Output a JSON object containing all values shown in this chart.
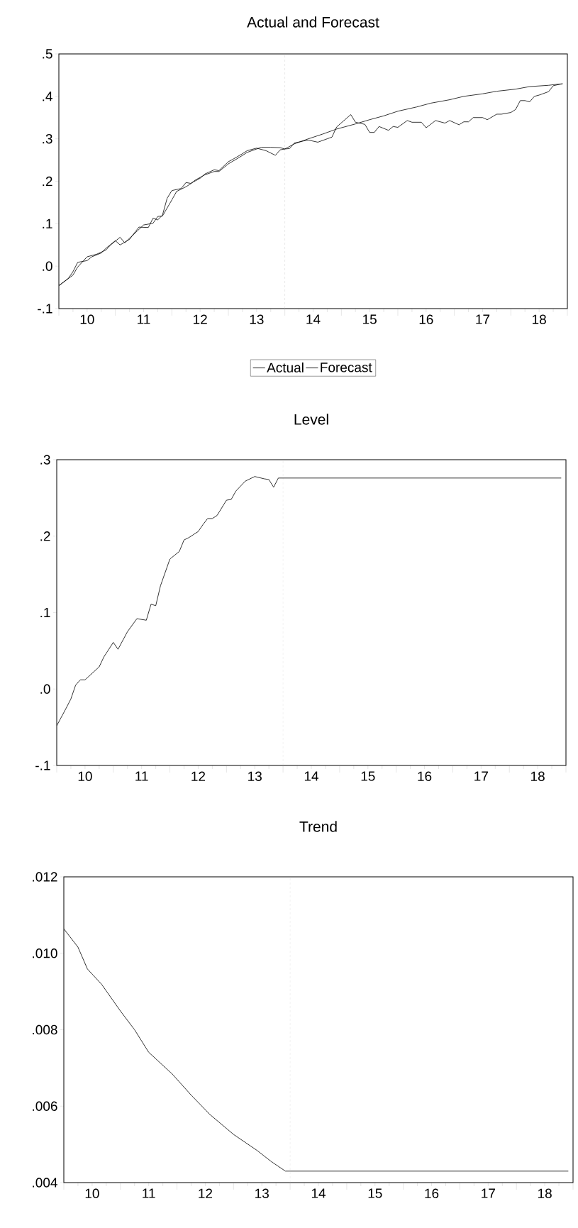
{
  "chart_data": [
    {
      "type": "line",
      "title": "Actual and Forecast",
      "legend": "bottom",
      "series": [
        {
          "name": "Actual",
          "color": "#000000",
          "x": [
            "2010-01",
            "2010-03",
            "2010-04",
            "2010-05",
            "2010-07",
            "2010-08",
            "2010-10",
            "2010-11",
            "2011-01",
            "2011-02",
            "2011-04",
            "2011-06",
            "2011-08",
            "2011-09",
            "2011-10",
            "2011-11",
            "2011-12",
            "2012-01",
            "2012-03",
            "2012-04",
            "2012-05",
            "2012-07",
            "2012-08",
            "2012-10",
            "2012-11",
            "2013-01",
            "2013-02",
            "2013-04",
            "2013-05",
            "2013-07",
            "2013-09",
            "2013-11",
            "2013-12",
            "2014-01",
            "2014-02",
            "2014-03",
            "2014-05",
            "2014-06",
            "2014-08",
            "2014-10",
            "2014-11",
            "2014-12",
            "2015-03",
            "2015-04",
            "2015-06",
            "2015-07",
            "2015-08",
            "2015-09",
            "2015-11",
            "2015-12",
            "2016-01",
            "2016-03",
            "2016-04",
            "2016-06",
            "2016-07",
            "2016-09",
            "2016-11",
            "2016-12",
            "2017-02",
            "2017-03",
            "2017-04",
            "2017-05",
            "2017-07",
            "2017-08",
            "2017-10",
            "2017-11",
            "2018-01",
            "2018-02",
            "2018-03",
            "2018-04",
            "2018-05",
            "2018-06",
            "2018-07",
            "2018-09",
            "2018-10",
            "2018-12"
          ],
          "values": [
            -0.046,
            -0.029,
            -0.013,
            0.009,
            0.013,
            0.022,
            0.031,
            0.042,
            0.06,
            0.05,
            0.063,
            0.092,
            0.091,
            0.113,
            0.109,
            0.12,
            0.16,
            0.178,
            0.183,
            0.197,
            0.195,
            0.207,
            0.217,
            0.227,
            0.225,
            0.246,
            0.252,
            0.265,
            0.272,
            0.278,
            0.272,
            0.261,
            0.274,
            0.276,
            0.277,
            0.29,
            0.295,
            0.297,
            0.292,
            0.3,
            0.304,
            0.328,
            0.357,
            0.339,
            0.334,
            0.315,
            0.315,
            0.329,
            0.32,
            0.329,
            0.327,
            0.343,
            0.339,
            0.339,
            0.326,
            0.343,
            0.337,
            0.343,
            0.333,
            0.34,
            0.34,
            0.35,
            0.35,
            0.345,
            0.358,
            0.358,
            0.362,
            0.369,
            0.39,
            0.39,
            0.387,
            0.4,
            0.403,
            0.411,
            0.425,
            0.43
          ]
        },
        {
          "name": "Forecast",
          "color": "#000000",
          "x": [
            "2010-01",
            "2010-04",
            "2010-05",
            "2010-06",
            "2010-07",
            "2010-09",
            "2010-11",
            "2010-12",
            "2011-02",
            "2011-03",
            "2011-05",
            "2011-07",
            "2011-09",
            "2011-10",
            "2011-11",
            "2012-01",
            "2012-02",
            "2012-04",
            "2012-05",
            "2012-06",
            "2012-08",
            "2012-10",
            "2012-11",
            "2013-01",
            "2013-03",
            "2013-05",
            "2013-08",
            "2013-10",
            "2013-12",
            "2014-01",
            "2014-03",
            "2014-06",
            "2014-09",
            "2014-12",
            "2015-04",
            "2015-07",
            "2015-10",
            "2016-01",
            "2016-05",
            "2016-08",
            "2016-12",
            "2017-03",
            "2017-07",
            "2017-10",
            "2018-02",
            "2018-05",
            "2018-09",
            "2018-12"
          ],
          "values": [
            -0.046,
            -0.021,
            -0.002,
            0.01,
            0.022,
            0.028,
            0.038,
            0.05,
            0.068,
            0.055,
            0.076,
            0.097,
            0.101,
            0.117,
            0.118,
            0.156,
            0.176,
            0.187,
            0.194,
            0.203,
            0.215,
            0.223,
            0.223,
            0.241,
            0.254,
            0.268,
            0.28,
            0.28,
            0.279,
            0.276,
            0.288,
            0.3,
            0.311,
            0.323,
            0.335,
            0.345,
            0.354,
            0.365,
            0.375,
            0.384,
            0.392,
            0.4,
            0.406,
            0.412,
            0.417,
            0.423,
            0.426,
            0.43
          ]
        }
      ],
      "xlim": [
        "2010-01",
        "2019-01"
      ],
      "ylim": [
        -0.1,
        0.5
      ],
      "xticks": [
        {
          "value": "2010-01",
          "label": null
        },
        {
          "value": "2010-04",
          "label": null
        },
        {
          "value": "2010-07",
          "label": "10"
        },
        {
          "value": "2010-10",
          "label": null
        },
        {
          "value": "2011-01",
          "label": null
        },
        {
          "value": "2011-04",
          "label": null
        },
        {
          "value": "2011-07",
          "label": "11"
        },
        {
          "value": "2011-10",
          "label": null
        },
        {
          "value": "2012-01",
          "label": null
        },
        {
          "value": "2012-04",
          "label": null
        },
        {
          "value": "2012-07",
          "label": "12"
        },
        {
          "value": "2012-10",
          "label": null
        },
        {
          "value": "2013-01",
          "label": null
        },
        {
          "value": "2013-04",
          "label": null
        },
        {
          "value": "2013-07",
          "label": "13"
        },
        {
          "value": "2013-10",
          "label": null
        },
        {
          "value": "2014-01",
          "label": null
        },
        {
          "value": "2014-04",
          "label": null
        },
        {
          "value": "2014-07",
          "label": "14"
        },
        {
          "value": "2014-10",
          "label": null
        },
        {
          "value": "2015-01",
          "label": null
        },
        {
          "value": "2015-04",
          "label": null
        },
        {
          "value": "2015-07",
          "label": "15"
        },
        {
          "value": "2015-10",
          "label": null
        },
        {
          "value": "2016-01",
          "label": null
        },
        {
          "value": "2016-04",
          "label": null
        },
        {
          "value": "2016-07",
          "label": "16"
        },
        {
          "value": "2016-10",
          "label": null
        },
        {
          "value": "2017-01",
          "label": null
        },
        {
          "value": "2017-04",
          "label": null
        },
        {
          "value": "2017-07",
          "label": "17"
        },
        {
          "value": "2017-10",
          "label": null
        },
        {
          "value": "2018-01",
          "label": null
        },
        {
          "value": "2018-04",
          "label": null
        },
        {
          "value": "2018-07",
          "label": "18"
        },
        {
          "value": "2018-10",
          "label": null
        },
        {
          "value": "2019-01",
          "label": null
        }
      ],
      "yticks": [
        {
          "value": -0.1,
          "label": "-.1"
        },
        {
          "value": 0,
          "label": ".0"
        },
        {
          "value": 0.1,
          "label": ".1"
        },
        {
          "value": 0.2,
          "label": ".2"
        },
        {
          "value": 0.3,
          "label": ".3"
        },
        {
          "value": 0.4,
          "label": ".4"
        },
        {
          "value": 0.5,
          "label": ".5"
        }
      ],
      "ref_lines": [
        {
          "axis": "x",
          "value": "2014-01",
          "color": "#c0c0c0",
          "line_style": "dashed"
        }
      ]
    },
    {
      "type": "line",
      "title": "Level",
      "color": "#000000",
      "x": [
        "2010-01",
        "2010-03",
        "2010-04",
        "2010-05",
        "2010-06",
        "2010-07",
        "2010-10",
        "2010-11",
        "2011-01",
        "2011-02",
        "2011-04",
        "2011-06",
        "2011-08",
        "2011-09",
        "2011-10",
        "2011-11",
        "2012-01",
        "2012-03",
        "2012-04",
        "2012-05",
        "2012-07",
        "2012-08",
        "2012-09",
        "2012-10",
        "2012-11",
        "2013-01",
        "2013-02",
        "2013-03",
        "2013-05",
        "2013-07",
        "2013-09",
        "2013-10",
        "2013-11",
        "2013-12",
        "2018-12"
      ],
      "values": [
        -0.048,
        -0.025,
        -0.013,
        0.005,
        0.012,
        0.012,
        0.029,
        0.042,
        0.061,
        0.052,
        0.075,
        0.092,
        0.09,
        0.111,
        0.109,
        0.135,
        0.17,
        0.18,
        0.195,
        0.198,
        0.206,
        0.215,
        0.223,
        0.223,
        0.227,
        0.247,
        0.248,
        0.259,
        0.272,
        0.278,
        0.275,
        0.274,
        0.264,
        0.276,
        0.276
      ],
      "xlim": [
        "2010-01",
        "2019-01"
      ],
      "ylim": [
        -0.1,
        0.3
      ],
      "xticks": [
        {
          "value": "2010-01",
          "label": null
        },
        {
          "value": "2010-04",
          "label": null
        },
        {
          "value": "2010-07",
          "label": "10"
        },
        {
          "value": "2010-10",
          "label": null
        },
        {
          "value": "2011-01",
          "label": null
        },
        {
          "value": "2011-04",
          "label": null
        },
        {
          "value": "2011-07",
          "label": "11"
        },
        {
          "value": "2011-10",
          "label": null
        },
        {
          "value": "2012-01",
          "label": null
        },
        {
          "value": "2012-04",
          "label": null
        },
        {
          "value": "2012-07",
          "label": "12"
        },
        {
          "value": "2012-10",
          "label": null
        },
        {
          "value": "2013-01",
          "label": null
        },
        {
          "value": "2013-04",
          "label": null
        },
        {
          "value": "2013-07",
          "label": "13"
        },
        {
          "value": "2013-10",
          "label": null
        },
        {
          "value": "2014-01",
          "label": null
        },
        {
          "value": "2014-04",
          "label": null
        },
        {
          "value": "2014-07",
          "label": "14"
        },
        {
          "value": "2014-10",
          "label": null
        },
        {
          "value": "2015-01",
          "label": null
        },
        {
          "value": "2015-04",
          "label": null
        },
        {
          "value": "2015-07",
          "label": "15"
        },
        {
          "value": "2015-10",
          "label": null
        },
        {
          "value": "2016-01",
          "label": null
        },
        {
          "value": "2016-04",
          "label": null
        },
        {
          "value": "2016-07",
          "label": "16"
        },
        {
          "value": "2016-10",
          "label": null
        },
        {
          "value": "2017-01",
          "label": null
        },
        {
          "value": "2017-04",
          "label": null
        },
        {
          "value": "2017-07",
          "label": "17"
        },
        {
          "value": "2017-10",
          "label": null
        },
        {
          "value": "2018-01",
          "label": null
        },
        {
          "value": "2018-04",
          "label": null
        },
        {
          "value": "2018-07",
          "label": "18"
        },
        {
          "value": "2018-10",
          "label": null
        },
        {
          "value": "2019-01",
          "label": null
        }
      ],
      "yticks": [
        {
          "value": -0.1,
          "label": "-.1"
        },
        {
          "value": 0,
          "label": ".0"
        },
        {
          "value": 0.1,
          "label": ".1"
        },
        {
          "value": 0.2,
          "label": ".2"
        },
        {
          "value": 0.3,
          "label": ".3"
        }
      ],
      "ref_lines": [
        {
          "axis": "x",
          "value": "2014-01",
          "color": "#c0c0c0",
          "line_style": "dashed"
        }
      ]
    },
    {
      "type": "line",
      "title": "Trend",
      "color": "#000000",
      "x": [
        "2010-01",
        "2010-04",
        "2010-06",
        "2010-09",
        "2011-01",
        "2011-04",
        "2011-07",
        "2011-12",
        "2012-04",
        "2012-08",
        "2013-01",
        "2013-06",
        "2013-09",
        "2013-12",
        "2018-12"
      ],
      "values": [
        0.01064,
        0.01016,
        0.00959,
        0.00919,
        0.00849,
        0.008,
        0.00741,
        0.00684,
        0.00629,
        0.00578,
        0.00526,
        0.00484,
        0.00455,
        0.0043,
        0.0043
      ],
      "xlim": [
        "2010-01",
        "2019-01"
      ],
      "ylim": [
        0.004,
        0.012
      ],
      "xticks": [
        {
          "value": "2010-01",
          "label": null
        },
        {
          "value": "2010-04",
          "label": null
        },
        {
          "value": "2010-07",
          "label": "10"
        },
        {
          "value": "2010-10",
          "label": null
        },
        {
          "value": "2011-01",
          "label": null
        },
        {
          "value": "2011-04",
          "label": null
        },
        {
          "value": "2011-07",
          "label": "11"
        },
        {
          "value": "2011-10",
          "label": null
        },
        {
          "value": "2012-01",
          "label": null
        },
        {
          "value": "2012-04",
          "label": null
        },
        {
          "value": "2012-07",
          "label": "12"
        },
        {
          "value": "2012-10",
          "label": null
        },
        {
          "value": "2013-01",
          "label": null
        },
        {
          "value": "2013-04",
          "label": null
        },
        {
          "value": "2013-07",
          "label": "13"
        },
        {
          "value": "2013-10",
          "label": null
        },
        {
          "value": "2014-01",
          "label": null
        },
        {
          "value": "2014-04",
          "label": null
        },
        {
          "value": "2014-07",
          "label": "14"
        },
        {
          "value": "2014-10",
          "label": null
        },
        {
          "value": "2015-01",
          "label": null
        },
        {
          "value": "2015-04",
          "label": null
        },
        {
          "value": "2015-07",
          "label": "15"
        },
        {
          "value": "2015-10",
          "label": null
        },
        {
          "value": "2016-01",
          "label": null
        },
        {
          "value": "2016-04",
          "label": null
        },
        {
          "value": "2016-07",
          "label": "16"
        },
        {
          "value": "2016-10",
          "label": null
        },
        {
          "value": "2017-01",
          "label": null
        },
        {
          "value": "2017-04",
          "label": null
        },
        {
          "value": "2017-07",
          "label": "17"
        },
        {
          "value": "2017-10",
          "label": null
        },
        {
          "value": "2018-01",
          "label": null
        },
        {
          "value": "2018-04",
          "label": null
        },
        {
          "value": "2018-07",
          "label": "18"
        },
        {
          "value": "2018-10",
          "label": null
        },
        {
          "value": "2019-01",
          "label": null
        }
      ],
      "yticks": [
        {
          "value": 0.004,
          "label": ".004"
        },
        {
          "value": 0.006,
          "label": ".006"
        },
        {
          "value": 0.008,
          "label": ".008"
        },
        {
          "value": 0.01,
          "label": ".010"
        },
        {
          "value": 0.012,
          "label": ".012"
        }
      ],
      "ref_lines": [
        {
          "axis": "x",
          "value": "2014-01",
          "color": "#c0c0c0",
          "line_style": "dashed"
        }
      ]
    }
  ]
}
